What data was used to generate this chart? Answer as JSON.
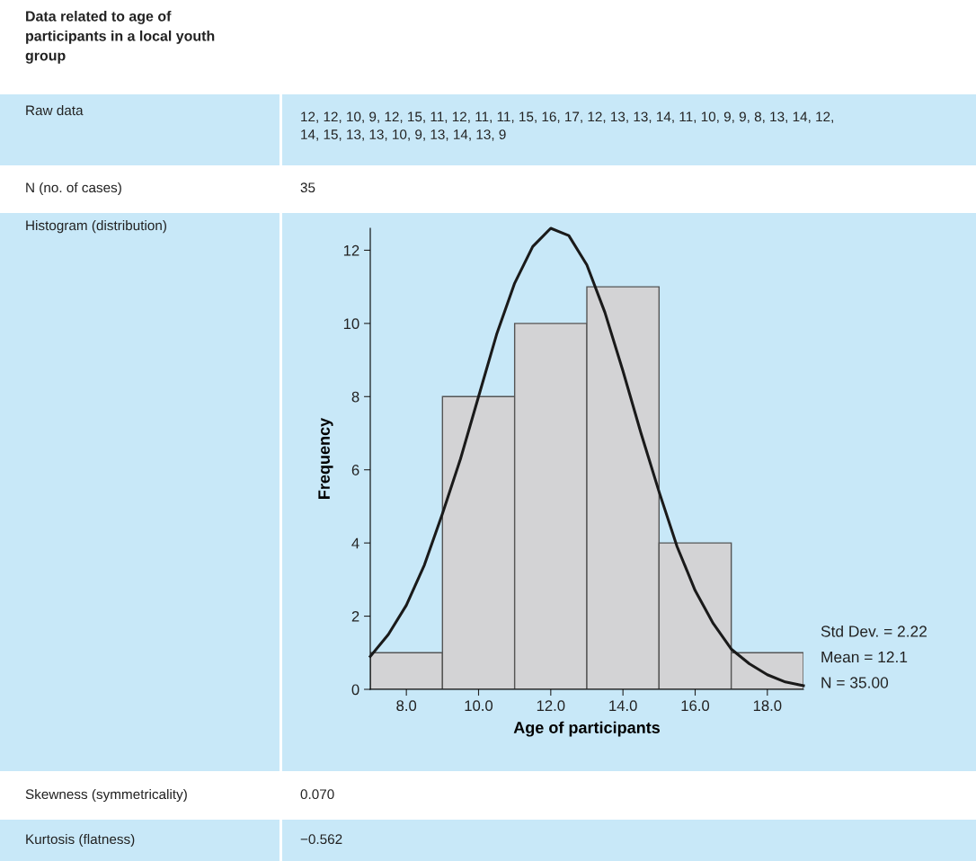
{
  "chart_data": {
    "type": "histogram",
    "title": "Data related to age of\nparticipants in a local youth\ngroup",
    "xlabel": "Age of participants",
    "ylabel": "Frequency",
    "bins": [
      7,
      9,
      11,
      13,
      15,
      17,
      19
    ],
    "values": [
      1,
      8,
      10,
      11,
      4,
      1
    ],
    "color": "#d3d3d5",
    "series": [
      {
        "type": "line",
        "color": "#1a1a1a",
        "x": [
          7,
          7.5,
          8,
          8.5,
          9,
          9.5,
          10,
          10.5,
          11,
          11.5,
          12,
          12.5,
          13,
          13.5,
          14,
          14.5,
          15,
          15.5,
          16,
          16.5,
          17,
          17.5,
          18,
          18.5,
          19
        ],
        "values": [
          0.9,
          1.5,
          2.3,
          3.4,
          4.8,
          6.3,
          8.0,
          9.7,
          11.1,
          12.1,
          12.6,
          12.4,
          11.6,
          10.3,
          8.7,
          7.0,
          5.4,
          3.9,
          2.7,
          1.8,
          1.1,
          0.7,
          0.4,
          0.2,
          0.1
        ]
      }
    ],
    "xlim": [
      7,
      19
    ],
    "xticks": [
      {
        "value": 8,
        "label": "8.0"
      },
      {
        "value": 10,
        "label": "10.0"
      },
      {
        "value": 12,
        "label": "12.0"
      },
      {
        "value": 14,
        "label": "14.0"
      },
      {
        "value": 16,
        "label": "16.0"
      },
      {
        "value": 18,
        "label": "18.0"
      }
    ],
    "ylim": [
      0,
      12.6
    ],
    "yticks": [
      0,
      2,
      4,
      6,
      8,
      10,
      12
    ],
    "grid": false,
    "legend": false,
    "marker": "none",
    "line_style": "solid",
    "annotations": [
      "Raw data",
      "12, 12, 10, 9, 12, 15, 11, 12, 11, 11, 15, 16, 17, 12, 13, 13, 14, 11, 10, 9, 9, 8, 13, 14, 12,\n14, 15, 13, 13, 10, 9, 13, 14, 13, 9",
      "N (no. of cases)",
      "35",
      "Histogram (distribution)",
      "Skewness (symmetricality)",
      "0.070",
      "Kurtosis (flatness)",
      "−0.562",
      "Std Dev. = 2.22",
      "Mean = 12.1",
      "N = 35.00"
    ]
  }
}
